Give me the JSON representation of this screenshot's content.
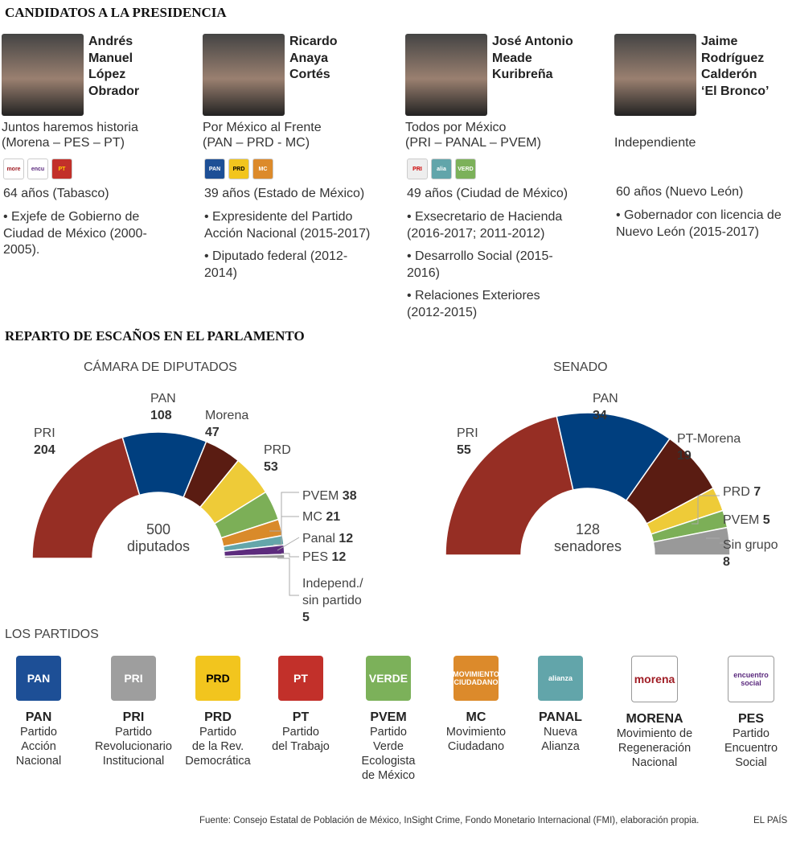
{
  "sections": {
    "candidates": "CANDIDATOS A LA PRESIDENCIA",
    "seats": "REPARTO DE ESCAÑOS EN EL PARLAMENTO",
    "parties": "LOS PARTIDOS"
  },
  "candidates": [
    {
      "name": [
        "Andrés",
        "Manuel",
        "López",
        "Obrador"
      ],
      "coalition": [
        "Juntos haremos historia",
        "(Morena – PES – PT)"
      ],
      "logos": [
        "morena",
        "encuentro social",
        "PT"
      ],
      "age": "64 años (Tabasco)",
      "bullets": [
        "• Exjefe de Gobierno de Ciudad de México (2000-2005)."
      ]
    },
    {
      "name": [
        "Ricardo",
        "Anaya",
        "Cortés"
      ],
      "coalition": [
        "Por México al Frente",
        "(PAN – PRD - MC)"
      ],
      "logos": [
        "PAN",
        "PRD",
        "MC"
      ],
      "age": "39 años (Estado de México)",
      "bullets": [
        "• Expresidente del Partido Acción Nacional (2015-2017)",
        "• Diputado federal (2012-2014)"
      ]
    },
    {
      "name": [
        "José Antonio",
        "Meade",
        "Kuribreña"
      ],
      "coalition": [
        "Todos por México",
        "(PRI – PANAL – PVEM)"
      ],
      "logos": [
        "PRI",
        "alianza",
        "VERDE"
      ],
      "age": "49 años (Ciudad de México)",
      "bullets": [
        "• Exsecretario de Hacienda (2016-2017; 2011-2012)",
        "• Desarrollo Social (2015-2016)",
        "• Relaciones Exteriores (2012-2015)"
      ]
    },
    {
      "name": [
        "Jaime",
        "Rodríguez",
        "Calderón",
        "‘El Bronco’"
      ],
      "coalition": [
        "",
        "Independiente"
      ],
      "logos": [],
      "age": "60 años (Nuevo León)",
      "bullets": [
        "• Gobernador con licencia de Nuevo León (2015-2017)"
      ]
    }
  ],
  "chart_data": [
    {
      "type": "pie",
      "title": "CÁMARA DE DIPUTADOS",
      "center_label": [
        "500",
        "diputados"
      ],
      "categories": [
        "PRI",
        "PAN",
        "Morena",
        "PRD",
        "PVEM",
        "MC",
        "Panal",
        "PES",
        "Independ./ sin partido"
      ],
      "values": [
        204,
        108,
        47,
        53,
        38,
        21,
        12,
        12,
        5
      ],
      "colors": [
        "#962e24",
        "#003f7f",
        "#5a1c12",
        "#eecb38",
        "#7caf57",
        "#d98a2a",
        "#64a6aa",
        "#5c2b7d",
        "#999999"
      ]
    },
    {
      "type": "pie",
      "title": "SENADO",
      "center_label": [
        "128",
        "senadores"
      ],
      "categories": [
        "PRI",
        "PAN",
        "PT-Morena",
        "PRD",
        "PVEM",
        "Sin grupo"
      ],
      "values": [
        55,
        34,
        19,
        7,
        5,
        8
      ],
      "colors": [
        "#962e24",
        "#003f7f",
        "#5a1c12",
        "#eecb38",
        "#7caf57",
        "#999999"
      ]
    }
  ],
  "parties": [
    {
      "abbr": "PAN",
      "name": [
        "Partido",
        "Acción",
        "Nacional"
      ],
      "color": "#1d4f96",
      "logo": "PAN"
    },
    {
      "abbr": "PRI",
      "name": [
        "Partido",
        "Revolucionario",
        "Institucional"
      ],
      "color": "#9e9e9e",
      "logo": "PRI"
    },
    {
      "abbr": "PRD",
      "name": [
        "Partido",
        "de la Rev.",
        "Democrática"
      ],
      "color": "#f2c51e",
      "logo": "PRD"
    },
    {
      "abbr": "PT",
      "name": [
        "Partido",
        "del Trabajo"
      ],
      "color": "#c2302a",
      "logo": "PT"
    },
    {
      "abbr": "PVEM",
      "name": [
        "Partido",
        "Verde",
        "Ecologista",
        "de México"
      ],
      "color": "#7cb15a",
      "logo": "VERDE"
    },
    {
      "abbr": "MC",
      "name": [
        "Movimiento",
        "Ciudadano"
      ],
      "color": "#dc8a2b",
      "logo": "MOVIMIENTO CIUDADANO"
    },
    {
      "abbr": "PANAL",
      "name": [
        "Nueva",
        "Alianza"
      ],
      "color": "#62a5aa",
      "logo": "alianza"
    },
    {
      "abbr": "MORENA",
      "name": [
        "Movimiento de",
        "Regeneración",
        "Nacional"
      ],
      "color": "#ffffff",
      "logo": "morena"
    },
    {
      "abbr": "PES",
      "name": [
        "Partido",
        "Encuentro",
        "Social"
      ],
      "color": "#ffffff",
      "logo": "encuentro social"
    }
  ],
  "footer": {
    "source": "Fuente: Consejo Estatal de Población de México, InSight Crime, Fondo Monetario Internacional (FMI), elaboración propia.",
    "brand": "EL PAÍS"
  }
}
